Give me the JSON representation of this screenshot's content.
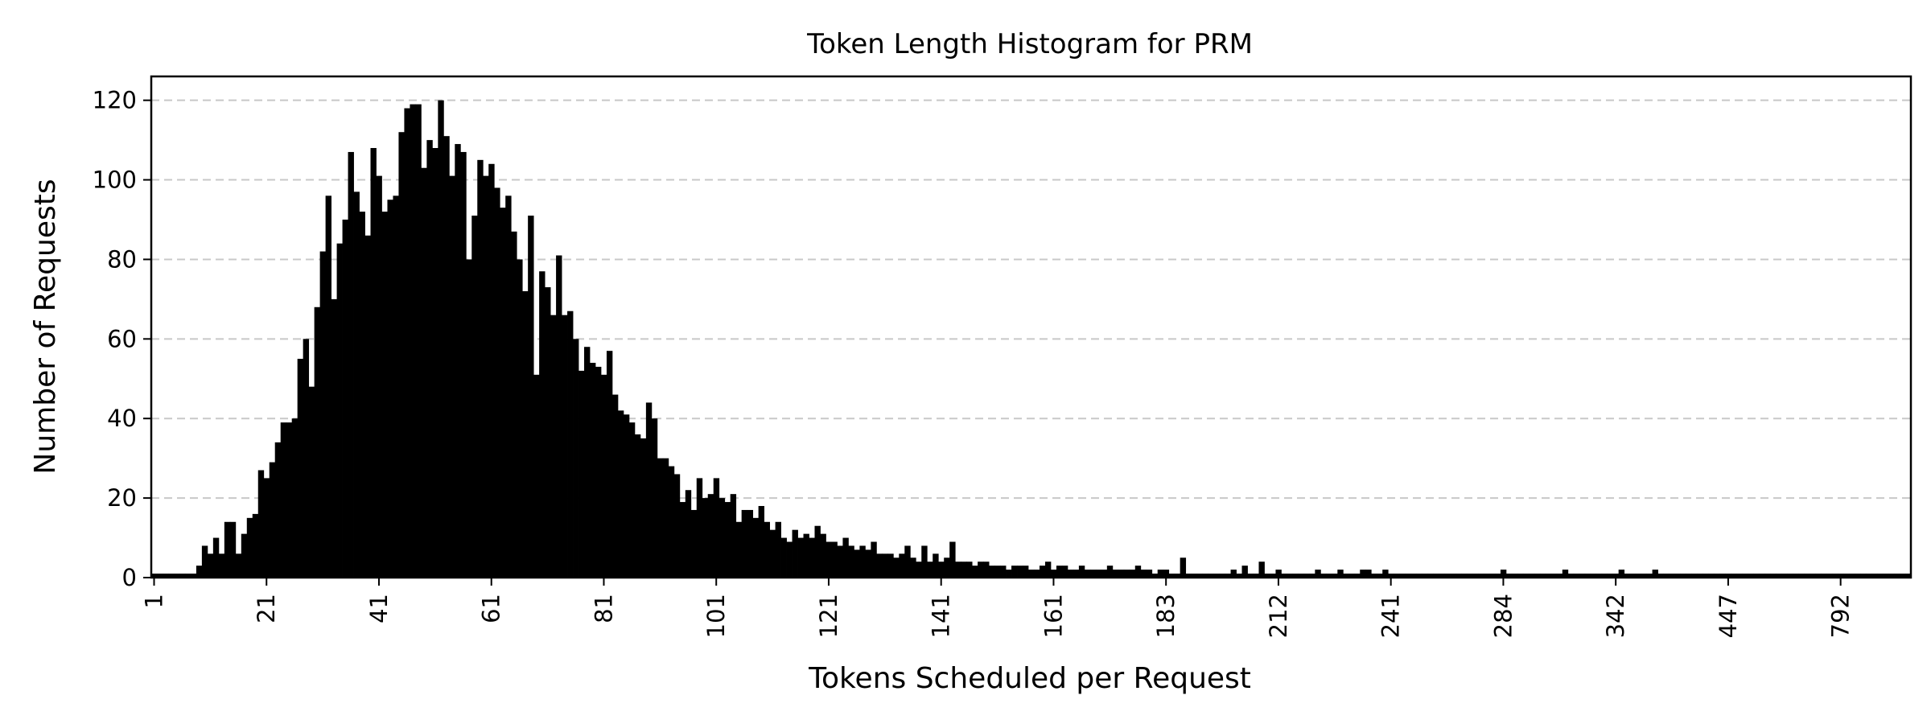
{
  "chart_data": {
    "type": "bar",
    "title": "Token Length Histogram for PRM",
    "xlabel": "Tokens Scheduled per Request",
    "ylabel": "Number of Requests",
    "ylim": [
      0,
      126
    ],
    "yticks": [
      0,
      20,
      40,
      60,
      80,
      100,
      120
    ],
    "x_ticks": [
      {
        "label": "1",
        "bin": 0
      },
      {
        "label": "21",
        "bin": 20
      },
      {
        "label": "41",
        "bin": 40
      },
      {
        "label": "61",
        "bin": 60
      },
      {
        "label": "81",
        "bin": 80
      },
      {
        "label": "101",
        "bin": 100
      },
      {
        "label": "121",
        "bin": 120
      },
      {
        "label": "141",
        "bin": 140
      },
      {
        "label": "161",
        "bin": 160
      },
      {
        "label": "183",
        "bin": 180
      },
      {
        "label": "212",
        "bin": 200
      },
      {
        "label": "241",
        "bin": 220
      },
      {
        "label": "284",
        "bin": 240
      },
      {
        "label": "342",
        "bin": 260
      },
      {
        "label": "447",
        "bin": 280
      },
      {
        "label": "792",
        "bin": 300
      }
    ],
    "bin_count": 313,
    "grid": "horizontal dashed",
    "bar_color": "#000000",
    "values": [
      1,
      1,
      1,
      1,
      1,
      1,
      1,
      1,
      3,
      8,
      6,
      10,
      6,
      14,
      14,
      6,
      11,
      15,
      16,
      27,
      25,
      29,
      34,
      39,
      39,
      40,
      55,
      60,
      48,
      68,
      82,
      96,
      70,
      84,
      90,
      107,
      97,
      92,
      86,
      108,
      101,
      92,
      95,
      96,
      112,
      118,
      119,
      119,
      103,
      110,
      108,
      120,
      111,
      101,
      109,
      107,
      80,
      91,
      105,
      101,
      104,
      98,
      93,
      96,
      87,
      80,
      72,
      91,
      51,
      77,
      73,
      66,
      81,
      66,
      67,
      60,
      52,
      58,
      54,
      53,
      51,
      57,
      46,
      42,
      41,
      39,
      36,
      35,
      44,
      40,
      30,
      30,
      28,
      26,
      19,
      22,
      17,
      25,
      20,
      21,
      25,
      20,
      19,
      21,
      14,
      17,
      17,
      15,
      18,
      14,
      12,
      14,
      10,
      9,
      12,
      10,
      11,
      10,
      13,
      11,
      9,
      9,
      8,
      10,
      8,
      7,
      8,
      7,
      9,
      6,
      6,
      6,
      5,
      6,
      8,
      5,
      4,
      8,
      4,
      6,
      4,
      5,
      9,
      4,
      4,
      4,
      3,
      4,
      4,
      3,
      3,
      3,
      2,
      3,
      3,
      3,
      2,
      2,
      3,
      4,
      2,
      3,
      3,
      2,
      2,
      3,
      2,
      2,
      2,
      2,
      3,
      2,
      2,
      2,
      2,
      3,
      2,
      2,
      1,
      2,
      2,
      1,
      1,
      5,
      1,
      1,
      1,
      1,
      1,
      1,
      1,
      1,
      2,
      1,
      3,
      1,
      1,
      4,
      1,
      1,
      2,
      1,
      1,
      1,
      1,
      1,
      1,
      2,
      1,
      1,
      1,
      2,
      1,
      1,
      1,
      2,
      2,
      1,
      1,
      2,
      1,
      1,
      1,
      1,
      1,
      1,
      1,
      1,
      1,
      1,
      1,
      1,
      1,
      1,
      1,
      1,
      1,
      1,
      1,
      1,
      2,
      1,
      1,
      1,
      1,
      1,
      1,
      1,
      1,
      1,
      1,
      2,
      1,
      1,
      1,
      1,
      1,
      1,
      1,
      1,
      1,
      2,
      1,
      1,
      1,
      1,
      1,
      2,
      1,
      1,
      1,
      1,
      1,
      1,
      1,
      1,
      1,
      1,
      1,
      1,
      1,
      1,
      1,
      1,
      1,
      1,
      1,
      1,
      1,
      1,
      1,
      1,
      1,
      1,
      1,
      1,
      1,
      1,
      1,
      1,
      1,
      1,
      1,
      1,
      1,
      1,
      1,
      1,
      1,
      1,
      1,
      1,
      1
    ]
  }
}
